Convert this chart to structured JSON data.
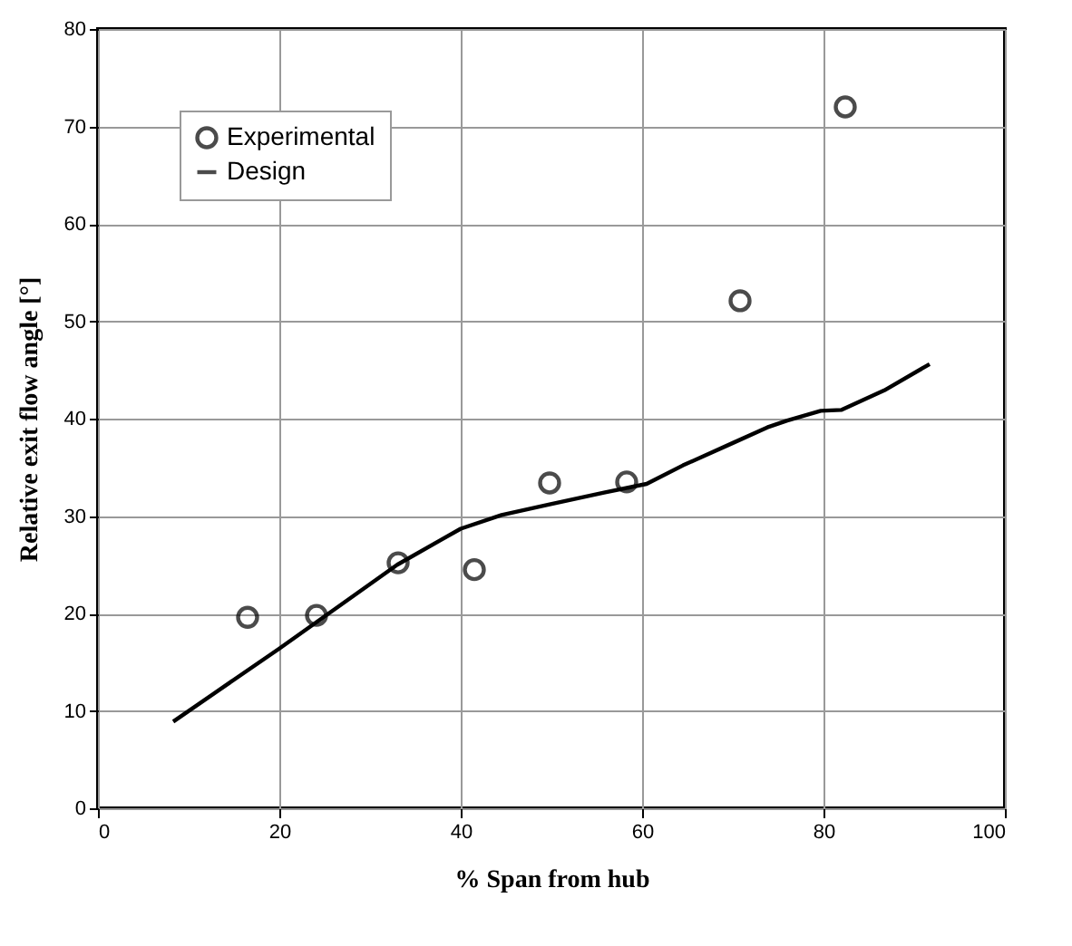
{
  "chart_data": {
    "type": "scatter",
    "xlabel": "% Span from hub",
    "ylabel": "Relative exit flow angle [°]",
    "xlim": [
      0,
      100
    ],
    "xticks": [
      0,
      20,
      40,
      60,
      80,
      100
    ],
    "ylim": [
      0,
      80
    ],
    "yticks": [
      0,
      10,
      20,
      30,
      40,
      50,
      60,
      70,
      80
    ],
    "grid": true,
    "legend": "top left",
    "series": [
      {
        "name": "Experimental",
        "marker": "circle",
        "color": "#000000",
        "x": [
          16.5,
          24.1,
          33.1,
          41.5,
          49.8,
          58.3,
          70.8,
          82.4
        ],
        "values": [
          19.6,
          19.8,
          25.2,
          24.5,
          33.4,
          33.5,
          52.1,
          72.0
        ]
      },
      {
        "name": "Design",
        "type": "line",
        "marker": "none",
        "line_style": "solid",
        "color": "#000000",
        "x": [
          8.3,
          20,
          33,
          37.9,
          40,
          44.5,
          49.8,
          55.8,
          60.5,
          64.5,
          70,
          73.8,
          76,
          79.7,
          82,
          86.7,
          91.7
        ],
        "values": [
          8.9,
          16.4,
          25,
          27.6,
          28.7,
          30.1,
          31.2,
          32.4,
          33.3,
          35.2,
          37.5,
          39.1,
          39.8,
          40.8,
          40.9,
          42.9,
          45.6
        ]
      }
    ]
  }
}
